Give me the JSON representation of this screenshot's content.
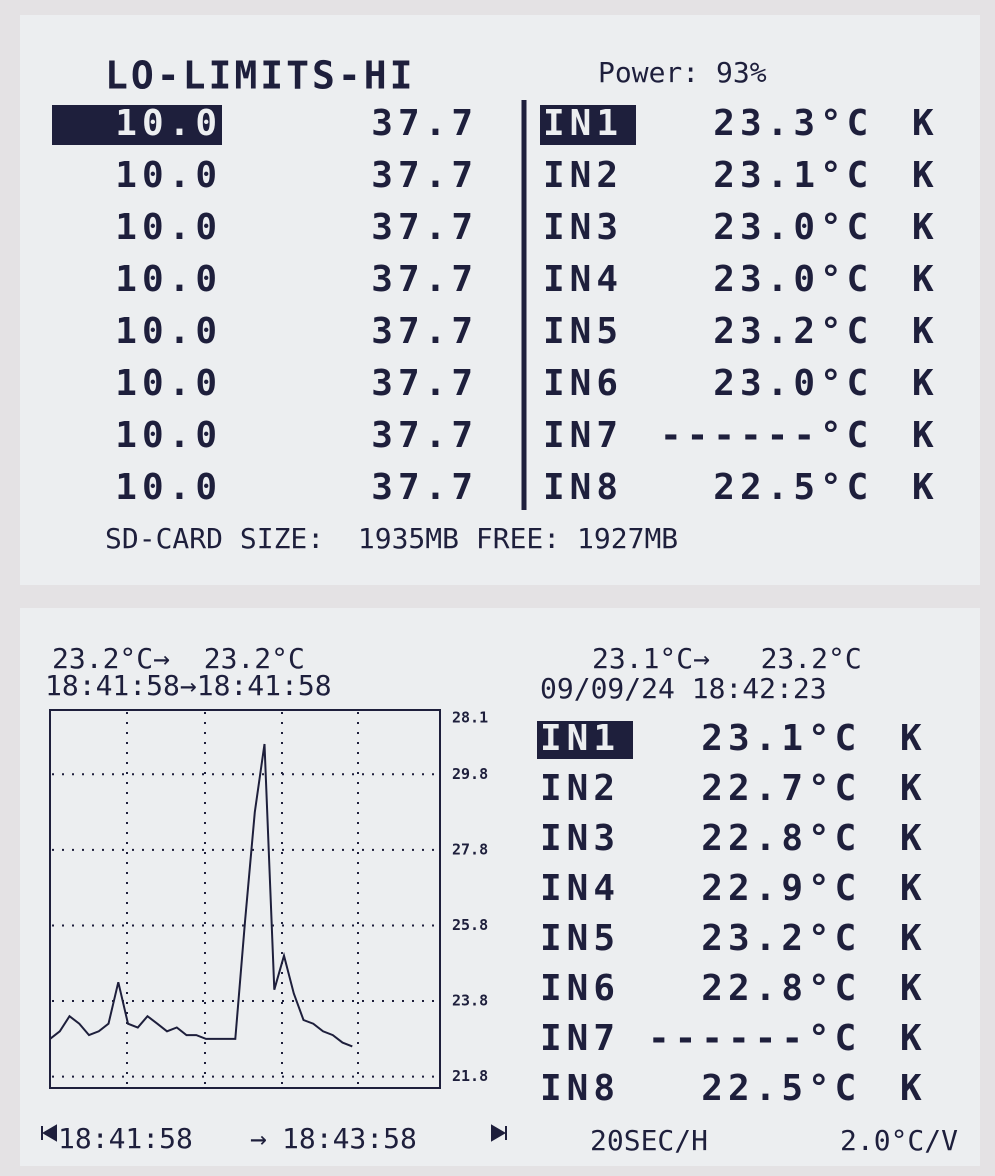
{
  "top_screen": {
    "limits_title": "LO-LIMITS-HI",
    "power": "Power: 93%",
    "rows": [
      {
        "lo": "10.0",
        "hi": "37.7",
        "channel": "IN1",
        "reading": "23.3",
        "unit": "°C",
        "sensor": "K"
      },
      {
        "lo": "10.0",
        "hi": "37.7",
        "channel": "IN2",
        "reading": "23.1",
        "unit": "°C",
        "sensor": "K"
      },
      {
        "lo": "10.0",
        "hi": "37.7",
        "channel": "IN3",
        "reading": "23.0",
        "unit": "°C",
        "sensor": "K"
      },
      {
        "lo": "10.0",
        "hi": "37.7",
        "channel": "IN4",
        "reading": "23.0",
        "unit": "°C",
        "sensor": "K"
      },
      {
        "lo": "10.0",
        "hi": "37.7",
        "channel": "IN5",
        "reading": "23.2",
        "unit": "°C",
        "sensor": "K"
      },
      {
        "lo": "10.0",
        "hi": "37.7",
        "channel": "IN6",
        "reading": "23.0",
        "unit": "°C",
        "sensor": "K"
      },
      {
        "lo": "10.0",
        "hi": "37.7",
        "channel": "IN7",
        "reading": "------",
        "unit": "°C",
        "sensor": "K"
      },
      {
        "lo": "10.0",
        "hi": "37.7",
        "channel": "IN8",
        "reading": "22.5",
        "unit": "°C",
        "sensor": "K"
      }
    ],
    "footer": "SD-CARD SIZE:  1935MB FREE: 1927MB"
  },
  "bottom_screen": {
    "cursor_left": {
      "temps": "23.2°C→  23.2°C",
      "times": "18:41:58→18:41:58"
    },
    "cursor_right": {
      "temps": "23.1°C→   23.2°C",
      "datetime": "09/09/24 18:42:23"
    },
    "rows": [
      {
        "channel": "IN1",
        "reading": "23.1",
        "unit": "°C",
        "sensor": "K"
      },
      {
        "channel": "IN2",
        "reading": "22.7",
        "unit": "°C",
        "sensor": "K"
      },
      {
        "channel": "IN3",
        "reading": "22.8",
        "unit": "°C",
        "sensor": "K"
      },
      {
        "channel": "IN4",
        "reading": "22.9",
        "unit": "°C",
        "sensor": "K"
      },
      {
        "channel": "IN5",
        "reading": "23.2",
        "unit": "°C",
        "sensor": "K"
      },
      {
        "channel": "IN6",
        "reading": "22.8",
        "unit": "°C",
        "sensor": "K"
      },
      {
        "channel": "IN7",
        "reading": "------",
        "unit": "°C",
        "sensor": "K"
      },
      {
        "channel": "IN8",
        "reading": "22.5",
        "unit": "°C",
        "sensor": "K"
      }
    ],
    "time_scale": "20SEC/H",
    "temp_scale": "2.0°C/V"
  },
  "chart_data": {
    "type": "line",
    "color": "#1e1f3c",
    "top_label": "28.1",
    "x_start": "18:41:58",
    "x_arrow": "→",
    "x_end": "18:43:58",
    "values": [
      22.8,
      23.0,
      23.4,
      23.2,
      22.9,
      23.0,
      23.2,
      24.3,
      23.2,
      23.1,
      23.4,
      23.2,
      23.0,
      23.1,
      22.9,
      22.9,
      22.8,
      22.8,
      22.8,
      22.8,
      25.9,
      28.8,
      30.6,
      24.1,
      25.0,
      24.0,
      23.3,
      23.2,
      23.0,
      22.9,
      22.7,
      22.6,
      null,
      null,
      null,
      null,
      null,
      null,
      null,
      null,
      null
    ],
    "ylim": [
      21.5,
      31.5
    ],
    "yticks": [
      21.8,
      23.8,
      25.8,
      27.8,
      29.8
    ],
    "grid": true
  }
}
